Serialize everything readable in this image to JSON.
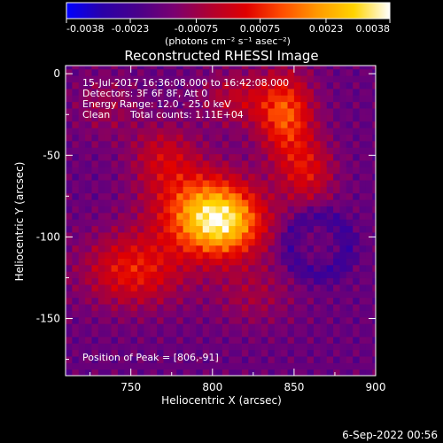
{
  "chart_data": {
    "type": "heatmap",
    "title": "Reconstructed RHESSI Image",
    "xlabel": "Heliocentric X (arcsec)",
    "ylabel": "Heliocentric Y (arcsec)",
    "xlim": [
      710,
      900
    ],
    "ylim": [
      -185,
      5
    ],
    "x_ticks": [
      750,
      800,
      850,
      900
    ],
    "y_ticks": [
      0,
      -50,
      -100,
      -150
    ],
    "colorbar": {
      "range": [
        -0.0038,
        0.0038
      ],
      "tick_labels": [
        "-0.0038",
        "-0.0023",
        "-0.00075",
        "0.00075",
        "0.0023",
        "0.0038"
      ],
      "unit_label": "(photons cm⁻² s⁻¹ asec⁻²)",
      "colormap": [
        "#0000ff",
        "#2a00a8",
        "#4a008a",
        "#7a0070",
        "#b00030",
        "#e00000",
        "#ff4d00",
        "#ff9a00",
        "#ffd400",
        "#ffffff"
      ]
    },
    "annotations": {
      "time": "15-Jul-2017 16:36:08.000 to 16:42:08.000",
      "detectors": "Detectors: 3F 6F 8F, Att 0",
      "energy": "Energy Range: 12.0 - 25.0 keV",
      "method": "Clean",
      "counts": "Total counts: 1.11E+04",
      "peak": "Position of Peak = [806,-91]"
    },
    "peak": {
      "x": 806,
      "y": -91
    },
    "sources": [
      {
        "x": 806,
        "y": -91,
        "amp": 0.004,
        "sx": 18,
        "sy": 15
      },
      {
        "x": 790,
        "y": -80,
        "amp": 0.002,
        "sx": 22,
        "sy": 18
      },
      {
        "x": 845,
        "y": -25,
        "amp": 0.0028,
        "sx": 12,
        "sy": 18
      },
      {
        "x": 858,
        "y": -60,
        "amp": 0.0018,
        "sx": 12,
        "sy": 14
      },
      {
        "x": 752,
        "y": -120,
        "amp": 0.0022,
        "sx": 22,
        "sy": 16
      },
      {
        "x": 770,
        "y": -50,
        "amp": 0.0014,
        "sx": 14,
        "sy": 14
      },
      {
        "x": 815,
        "y": -15,
        "amp": 0.0013,
        "sx": 16,
        "sy": 12
      },
      {
        "x": 825,
        "y": -135,
        "amp": 0.0009,
        "sx": 18,
        "sy": 14
      },
      {
        "x": 735,
        "y": -20,
        "amp": 0.0008,
        "sx": 14,
        "sy": 14
      }
    ],
    "grid": false
  },
  "footer": {
    "date": "6-Sep-2022 00:56"
  }
}
